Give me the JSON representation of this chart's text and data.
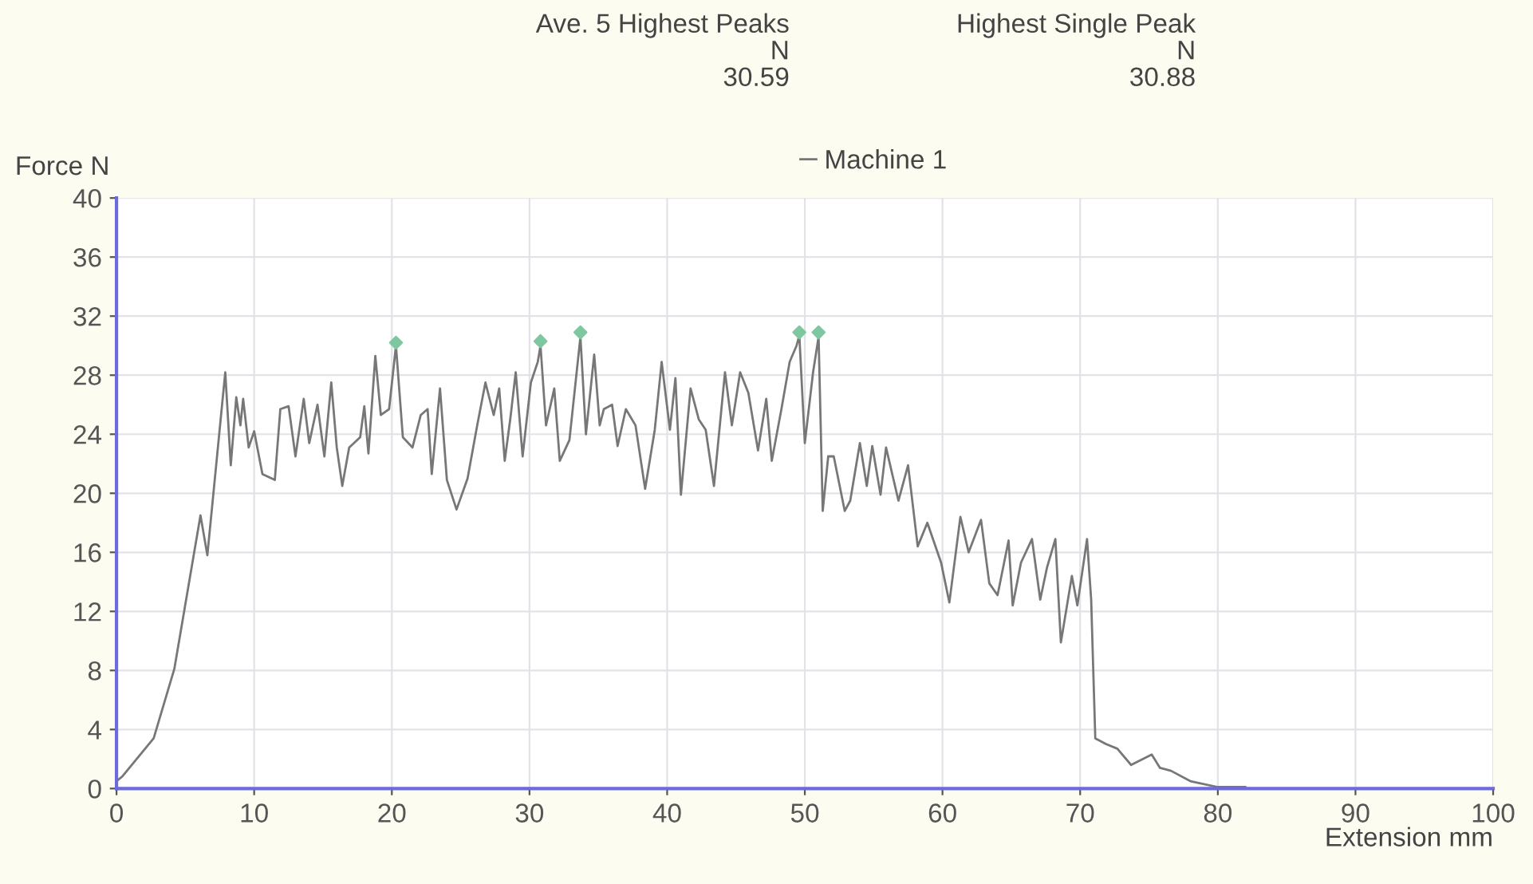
{
  "chart_data": {
    "type": "line",
    "xlabel": "Extension mm",
    "ylabel": "Force N",
    "annotations": [
      "Ave. 5 Highest Peaks\nN\n30.59",
      "Highest Single Peak\nN\n30.88"
    ],
    "xlim": [
      0,
      100
    ],
    "xticks": [
      0,
      10,
      20,
      30,
      40,
      50,
      60,
      70,
      80,
      90,
      100
    ],
    "ylim": [
      0,
      40
    ],
    "yticks": [
      0,
      4,
      8,
      12,
      16,
      20,
      24,
      28,
      32,
      36,
      40
    ],
    "grid": true,
    "legend": "top",
    "series": [
      {
        "name": "Machine 1",
        "color": "#777777",
        "x": [
          0,
          0.4,
          2.7,
          4.2,
          6.1,
          6.6,
          7.9,
          8.3,
          8.7,
          9.0,
          9.2,
          9.6,
          10.0,
          10.6,
          11.5,
          11.9,
          12.5,
          13.0,
          13.6,
          14.0,
          14.6,
          15.1,
          15.6,
          16.0,
          16.4,
          16.9,
          17.7,
          18.0,
          18.3,
          18.8,
          19.2,
          19.8,
          20.3,
          20.8,
          21.5,
          22.1,
          22.6,
          22.9,
          23.5,
          24.0,
          24.7,
          25.5,
          26.2,
          26.8,
          27.4,
          27.8,
          28.2,
          28.6,
          29.0,
          29.5,
          30.1,
          30.6,
          30.8,
          31.2,
          31.8,
          32.2,
          32.9,
          33.7,
          34.1,
          34.7,
          35.1,
          35.4,
          36.0,
          36.4,
          37.0,
          37.7,
          38.4,
          39.1,
          39.6,
          40.2,
          40.6,
          41.0,
          41.7,
          42.3,
          42.8,
          43.4,
          44.2,
          44.7,
          45.3,
          45.9,
          46.6,
          47.2,
          47.6,
          48.3,
          48.9,
          49.4,
          49.6,
          50.0,
          50.6,
          51.0,
          51.3,
          51.7,
          52.1,
          52.9,
          53.3,
          54.0,
          54.5,
          54.9,
          55.5,
          55.9,
          56.8,
          57.5,
          58.2,
          58.9,
          59.9,
          60.5,
          61.3,
          61.9,
          62.8,
          63.4,
          64.0,
          64.8,
          65.1,
          65.7,
          66.5,
          67.1,
          67.6,
          68.2,
          68.6,
          69.4,
          69.8,
          70.5,
          70.8,
          71.1,
          71.9,
          72.7,
          73.7,
          75.2,
          75.8,
          76.6,
          78.0,
          80.0,
          82.0
        ],
        "values": [
          0.5,
          0.8,
          3.4,
          8.1,
          18.5,
          15.8,
          28.2,
          21.9,
          26.5,
          24.6,
          26.4,
          23.1,
          24.2,
          21.3,
          20.9,
          25.7,
          25.9,
          22.5,
          26.4,
          23.4,
          26.0,
          22.5,
          27.5,
          23.1,
          20.5,
          23.1,
          23.8,
          25.9,
          22.7,
          29.3,
          25.3,
          25.7,
          30.0,
          23.8,
          23.1,
          25.3,
          25.7,
          21.3,
          27.1,
          20.9,
          18.9,
          21.0,
          24.6,
          27.5,
          25.3,
          27.1,
          22.2,
          25.0,
          28.2,
          22.5,
          27.5,
          28.9,
          30.0,
          24.6,
          27.1,
          22.2,
          23.6,
          30.6,
          24.0,
          29.4,
          24.6,
          25.7,
          26.0,
          23.2,
          25.7,
          24.6,
          20.3,
          24.3,
          28.9,
          24.3,
          27.8,
          19.9,
          27.1,
          25.0,
          24.3,
          20.5,
          28.2,
          24.6,
          28.2,
          26.8,
          22.9,
          26.4,
          22.2,
          25.7,
          28.9,
          30.0,
          30.7,
          23.4,
          28.2,
          30.6,
          18.8,
          22.5,
          22.5,
          18.8,
          19.5,
          23.4,
          20.5,
          23.2,
          19.9,
          23.1,
          19.5,
          21.9,
          16.4,
          18.0,
          15.3,
          12.6,
          18.4,
          16.0,
          18.2,
          13.9,
          13.1,
          16.8,
          12.4,
          15.3,
          16.9,
          12.8,
          15.0,
          16.9,
          9.9,
          14.4,
          12.4,
          16.9,
          12.8,
          3.4,
          3.0,
          2.7,
          1.6,
          2.3,
          1.4,
          1.2,
          0.5,
          0.1,
          0.1
        ]
      },
      {
        "type": "scatter",
        "color": "#7fc7a0",
        "marker": "diamond",
        "x": [
          20.3,
          30.8,
          33.7,
          49.6,
          51.0
        ],
        "values": [
          30.2,
          30.3,
          30.9,
          30.9,
          30.9
        ]
      }
    ]
  }
}
